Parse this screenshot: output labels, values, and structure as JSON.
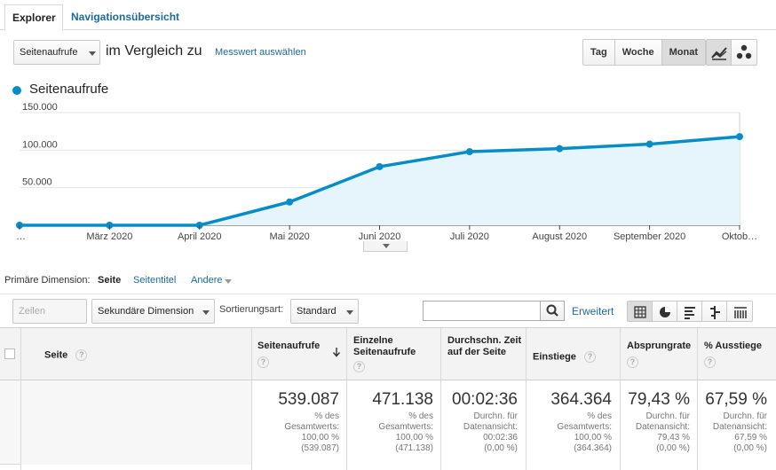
{
  "tabs": [
    {
      "label": "Explorer",
      "active": true
    },
    {
      "label": "Navigationsübersicht",
      "active": false
    }
  ],
  "toolbar": {
    "metric_select": "Seitenaufrufe",
    "compare_text": "im Vergleich zu",
    "choose_metric_link": "Messwert auswählen",
    "period_buttons": [
      {
        "label": "Tag",
        "selected": false
      },
      {
        "label": "Woche",
        "selected": false
      },
      {
        "label": "Monat",
        "selected": true
      }
    ],
    "view_icons": [
      "line-chart-icon",
      "motion-chart-icon"
    ]
  },
  "legend": {
    "label": "Seitenaufrufe",
    "color": "#058dc7"
  },
  "chart_data": {
    "type": "area",
    "series": [
      {
        "name": "Seitenaufrufe",
        "values": [
          0,
          0,
          0,
          31000,
          78000,
          98000,
          102000,
          108000,
          118000
        ],
        "color": "#058dc7",
        "fill": "#e6f4fb"
      }
    ],
    "x": [
      "…",
      "März 2020",
      "April 2020",
      "Mai 2020",
      "Juni 2020",
      "Juli 2020",
      "August 2020",
      "September 2020",
      "Oktob…"
    ],
    "y_ticks": [
      {
        "value": 150000,
        "label": "150.000"
      },
      {
        "value": 100000,
        "label": "100.000"
      },
      {
        "value": 50000,
        "label": "50.000"
      }
    ],
    "ylim": [
      0,
      150000
    ],
    "grid": true
  },
  "dimensions": {
    "label": "Primäre Dimension:",
    "items": [
      {
        "label": "Seite",
        "active": true
      },
      {
        "label": "Seitentitel",
        "active": false
      },
      {
        "label": "Andere",
        "active": false,
        "dropdown": true
      }
    ]
  },
  "table_toolbar": {
    "show_rows": "Zeilen darstellen",
    "secondary_dimension": "Sekundäre Dimension",
    "sort_label": "Sortierungsart:",
    "sort_value": "Standard",
    "search_placeholder": "",
    "advanced_link": "Erweitert",
    "view_icons": [
      "table-view-icon",
      "pie-view-icon",
      "performance-view-icon",
      "comparison-view-icon",
      "pivot-view-icon"
    ]
  },
  "table": {
    "headers": [
      {
        "label": "Seite"
      },
      {
        "label": "Seitenaufrufe",
        "sorted": true
      },
      {
        "label": "Einzelne Seitenaufrufe"
      },
      {
        "label": "Durchschn. Zeit auf der Seite"
      },
      {
        "label": "Einstiege"
      },
      {
        "label": "Absprungrate"
      },
      {
        "label": "% Ausstiege"
      }
    ],
    "totals": [
      {
        "value": "539.087",
        "sub": [
          "% des",
          "Gesamtwerts:",
          "100,00 %",
          "(539.087)"
        ]
      },
      {
        "value": "471.138",
        "sub": [
          "% des",
          "Gesamtwerts:",
          "100,00 %",
          "(471.138)"
        ]
      },
      {
        "value": "00:02:36",
        "sub": [
          "Durchn. für",
          "Datenansicht:",
          "00:02:36",
          "(0,00 %)"
        ]
      },
      {
        "value": "364.364",
        "sub": [
          "% des",
          "Gesamtwerts:",
          "100,00 %",
          "(364.364)"
        ]
      },
      {
        "value": "79,43 %",
        "sub": [
          "Durchn. für",
          "Datenansicht:",
          "79,43 %",
          "(0,00 %)"
        ]
      },
      {
        "value": "67,59 %",
        "sub": [
          "Durchn. für",
          "Datenansicht:",
          "67,59 %",
          "(0,00 %)"
        ]
      }
    ]
  }
}
